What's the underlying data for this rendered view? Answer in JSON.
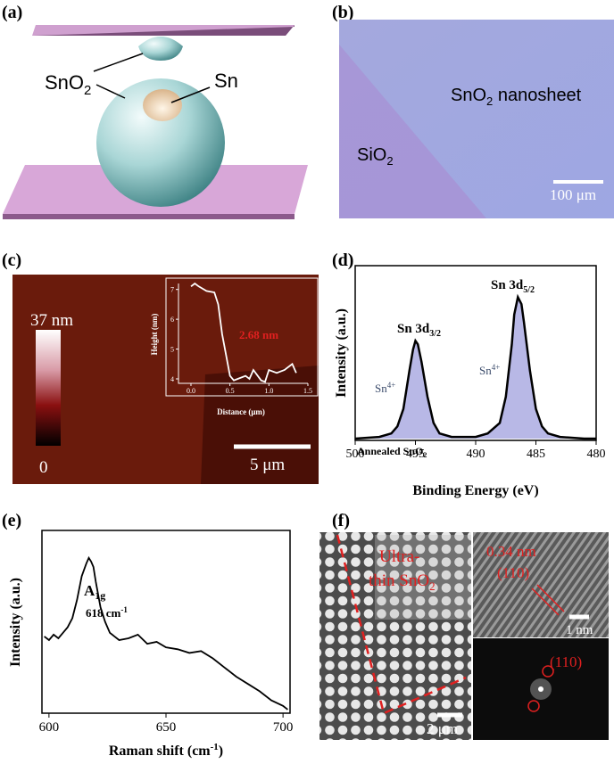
{
  "panels": {
    "a": {
      "label": "(a)",
      "oxide": [
        "SnO",
        "2"
      ],
      "metal": "Sn"
    },
    "b": {
      "label": "(b)",
      "sheet": [
        "SnO",
        "2",
        " nanosheet"
      ],
      "substrate": [
        "SiO",
        "2"
      ],
      "scale": "100 μm"
    },
    "c": {
      "label": "(c)",
      "color_max": "37 nm",
      "color_min": "0",
      "scale": "5 μm"
    },
    "d": {
      "label": "(d)",
      "peak1": [
        "Sn 3d",
        "3/2"
      ],
      "peak2": [
        "Sn 3d",
        "5/2"
      ],
      "state1": [
        "Sn",
        "4+"
      ],
      "state2": [
        "Sn",
        "4+"
      ],
      "sample": [
        "Annealed SnO",
        "2"
      ]
    },
    "e": {
      "label": "(e)",
      "mode": [
        "A",
        "1g"
      ],
      "shift": [
        "618 cm",
        "-1"
      ]
    },
    "f": {
      "label": "(f)",
      "film": [
        "Ultra-",
        "thin SnO",
        "2"
      ],
      "spacing": "0.34 nm",
      "plane": "(110)",
      "scale_tem": "1 nm",
      "fft_plane": "(110)",
      "scale_sem": "2 μm"
    }
  },
  "chart_data": [
    {
      "type": "line",
      "x_label": "Distance (μm)",
      "y_label": "Height (nm)",
      "annotation": "2.68 nm",
      "color": "#ffffff",
      "x": [
        0,
        0.05,
        0.1,
        0.2,
        0.3,
        0.35,
        0.4,
        0.45,
        0.5,
        0.55,
        0.6,
        0.7,
        0.75,
        0.8,
        0.9,
        0.95,
        1.0,
        1.1,
        1.2,
        1.3,
        1.35
      ],
      "values": [
        7.1,
        7.2,
        7.1,
        6.95,
        6.9,
        6.5,
        5.5,
        4.8,
        4.1,
        3.95,
        4.0,
        4.1,
        4.0,
        4.3,
        3.95,
        3.9,
        4.3,
        4.2,
        4.3,
        4.5,
        4.2
      ],
      "xlim": [
        -0.16,
        1.5
      ],
      "ylim": [
        3.85,
        7.2
      ],
      "xticks": [
        {
          "value": 0,
          "label": "0.0"
        },
        {
          "value": 0.5,
          "label": "0.5"
        },
        {
          "value": 1,
          "label": "1.0"
        },
        {
          "value": 1.5,
          "label": "1.5"
        }
      ],
      "yticks": [
        4,
        5,
        6,
        7
      ]
    },
    {
      "type": "area",
      "x_label": "Binding Energy (eV)",
      "y_label": "Intensity (a.u.)",
      "color": "#000000",
      "fill": "#b8b8e6",
      "x": [
        500,
        498,
        497,
        496.5,
        496,
        495.5,
        495.2,
        495,
        494.8,
        494.5,
        494,
        493.5,
        493,
        492,
        490,
        489,
        488,
        487.5,
        487,
        486.8,
        486.5,
        486.2,
        486,
        485.5,
        485,
        484.5,
        484,
        483,
        481,
        480
      ],
      "values": [
        0.01,
        0.02,
        0.04,
        0.08,
        0.18,
        0.4,
        0.52,
        0.57,
        0.55,
        0.45,
        0.25,
        0.1,
        0.04,
        0.02,
        0.02,
        0.04,
        0.1,
        0.25,
        0.55,
        0.72,
        0.82,
        0.78,
        0.68,
        0.4,
        0.18,
        0.08,
        0.04,
        0.02,
        0.01,
        0.01
      ],
      "xlim": [
        500,
        480
      ],
      "ylim": [
        0,
        1
      ],
      "xticks": [
        500,
        495,
        490,
        485,
        480
      ]
    },
    {
      "type": "line",
      "x_label": [
        "Raman shift (cm",
        "-1",
        ")"
      ],
      "y_label": "Intensity (a.u.)",
      "color": "#000000",
      "x": [
        598,
        600,
        602,
        604,
        606,
        608,
        610,
        612,
        614,
        616,
        617,
        618,
        619,
        620,
        622,
        624,
        626,
        628,
        630,
        634,
        638,
        642,
        646,
        650,
        655,
        660,
        665,
        670,
        675,
        680,
        685,
        690,
        695,
        700,
        702
      ],
      "values": [
        0.42,
        0.4,
        0.43,
        0.41,
        0.44,
        0.47,
        0.52,
        0.62,
        0.75,
        0.82,
        0.85,
        0.83,
        0.8,
        0.72,
        0.58,
        0.5,
        0.44,
        0.42,
        0.4,
        0.41,
        0.43,
        0.38,
        0.39,
        0.36,
        0.35,
        0.33,
        0.34,
        0.3,
        0.25,
        0.2,
        0.16,
        0.12,
        0.07,
        0.04,
        0.02
      ],
      "xlim": [
        597,
        703
      ],
      "ylim": [
        0,
        1
      ],
      "xticks": [
        600,
        650,
        700
      ]
    }
  ]
}
